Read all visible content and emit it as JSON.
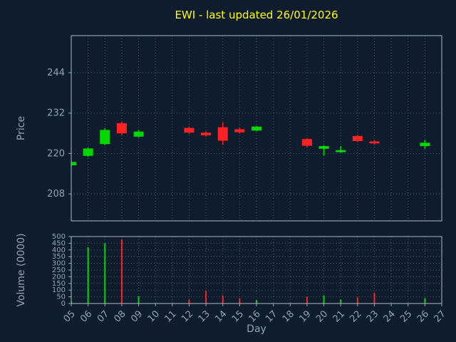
{
  "title": "EWI - last updated 26/01/2026",
  "colors": {
    "background": "#0f1c2d",
    "title": "#ffff00",
    "axis_text": "#8fa3b6",
    "grid": "#46586c",
    "frame": "#a8bccd",
    "up": "#00d800",
    "down": "#ff2222"
  },
  "chart_data": {
    "type": "candlestick",
    "title": "EWI - last updated 26/01/2026",
    "xlabel": "Day",
    "ylabel_price": "Price",
    "ylabel_volume": "Volume (0000)",
    "legend": "none",
    "grid": "dotted",
    "day_range": [
      5,
      27
    ],
    "x_tick_labels": [
      "05",
      "06",
      "07",
      "08",
      "09",
      "10",
      "11",
      "12",
      "13",
      "14",
      "15",
      "16",
      "17",
      "18",
      "19",
      "20",
      "21",
      "22",
      "23",
      "24",
      "25",
      "26",
      "27"
    ],
    "price_range": [
      200,
      255
    ],
    "price_ticks": [
      208,
      220,
      232,
      244
    ],
    "volume_range": [
      0,
      500
    ],
    "volume_ticks": [
      0,
      50,
      100,
      150,
      200,
      250,
      300,
      350,
      400,
      450,
      500
    ],
    "candles": [
      {
        "day": 5,
        "open": 216.5,
        "high": 217.8,
        "low": 216.2,
        "close": 217.5,
        "volume": 15
      },
      {
        "day": 6,
        "open": 219.3,
        "high": 221.8,
        "low": 219.0,
        "close": 221.5,
        "volume": 420
      },
      {
        "day": 7,
        "open": 222.8,
        "high": 227.5,
        "low": 222.5,
        "close": 227.0,
        "volume": 450
      },
      {
        "day": 8,
        "open": 229.0,
        "high": 229.4,
        "low": 225.5,
        "close": 226.0,
        "volume": 480
      },
      {
        "day": 9,
        "open": 225.0,
        "high": 227.0,
        "low": 224.8,
        "close": 226.5,
        "volume": 55
      },
      {
        "day": 12,
        "open": 227.6,
        "high": 228.0,
        "low": 225.8,
        "close": 226.2,
        "volume": 30
      },
      {
        "day": 13,
        "open": 226.2,
        "high": 226.6,
        "low": 225.0,
        "close": 225.4,
        "volume": 95
      },
      {
        "day": 14,
        "open": 227.8,
        "high": 229.2,
        "low": 222.6,
        "close": 223.8,
        "volume": 60
      },
      {
        "day": 15,
        "open": 227.2,
        "high": 227.6,
        "low": 225.9,
        "close": 226.3,
        "volume": 40
      },
      {
        "day": 16,
        "open": 226.8,
        "high": 228.2,
        "low": 226.6,
        "close": 228.0,
        "volume": 25
      },
      {
        "day": 19,
        "open": 224.3,
        "high": 224.6,
        "low": 221.9,
        "close": 222.3,
        "volume": 50
      },
      {
        "day": 20,
        "open": 221.4,
        "high": 222.4,
        "low": 219.4,
        "close": 222.2,
        "volume": 60
      },
      {
        "day": 21,
        "open": 220.4,
        "high": 222.2,
        "low": 220.2,
        "close": 221.0,
        "volume": 30
      },
      {
        "day": 22,
        "open": 225.2,
        "high": 225.5,
        "low": 223.4,
        "close": 223.7,
        "volume": 45
      },
      {
        "day": 23,
        "open": 223.6,
        "high": 224.0,
        "low": 222.6,
        "close": 223.0,
        "volume": 80
      },
      {
        "day": 26,
        "open": 222.2,
        "high": 224.0,
        "low": 221.4,
        "close": 223.2,
        "volume": 40
      }
    ]
  }
}
